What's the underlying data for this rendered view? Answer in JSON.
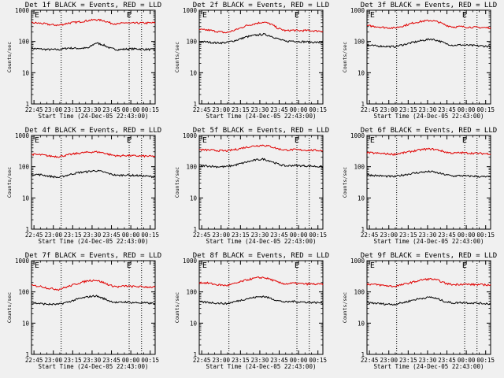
{
  "colors": {
    "background": "#f0f0f0",
    "events": "#000000",
    "lld": "#e00000",
    "axes": "#000000"
  },
  "chart_data": [
    {
      "type": "line",
      "title": "Det 1f BLACK = Events, RED = LLD",
      "xlabel": "Start Time (24-Dec-05 22:43:00)",
      "ylabel": "Counts/sec",
      "yscale": "log",
      "ylim": [
        1,
        1000
      ],
      "yticks": [
        "1",
        "10",
        "100",
        "1000"
      ],
      "xlim": [
        0,
        100
      ],
      "xticks": [
        "22:45",
        "23:00",
        "23:15",
        "23:30",
        "23:45",
        "00:00",
        "00:15"
      ],
      "vlines_dotted": [
        24,
        79,
        89
      ],
      "markers": [
        "E",
        "E"
      ],
      "series": [
        {
          "name": "BLACK = Events",
          "color": "#000000",
          "x": [
            0,
            8,
            14,
            22,
            30,
            38,
            46,
            52,
            58,
            64,
            70,
            76,
            80,
            86,
            92,
            98
          ],
          "y": [
            60,
            57,
            55,
            55,
            62,
            60,
            62,
            90,
            78,
            60,
            55,
            57,
            58,
            58,
            56,
            55
          ]
        },
        {
          "name": "RED = LLD",
          "color": "#e00000",
          "x": [
            0,
            8,
            14,
            22,
            30,
            38,
            46,
            52,
            58,
            64,
            70,
            76,
            80,
            86,
            92,
            98
          ],
          "y": [
            400,
            380,
            350,
            330,
            390,
            420,
            470,
            500,
            470,
            390,
            360,
            400,
            380,
            390,
            390,
            395
          ]
        }
      ]
    },
    {
      "type": "line",
      "title": "Det 2f BLACK = Events, RED = LLD",
      "xlabel": "Start Time (24-Dec-05 22:43:00)",
      "ylabel": "Counts/sec",
      "yscale": "log",
      "ylim": [
        1,
        1000
      ],
      "yticks": [
        "1",
        "10",
        "100",
        "1000"
      ],
      "xlim": [
        0,
        100
      ],
      "xticks": [
        "22:45",
        "23:00",
        "23:15",
        "23:30",
        "23:45",
        "00:00",
        "00:15"
      ],
      "vlines_dotted": [
        24,
        79,
        89
      ],
      "markers": [
        "E",
        "E"
      ],
      "series": [
        {
          "name": "BLACK = Events",
          "color": "#000000",
          "x": [
            0,
            8,
            14,
            22,
            30,
            38,
            46,
            52,
            58,
            64,
            70,
            76,
            80,
            86,
            92,
            98
          ],
          "y": [
            100,
            95,
            90,
            92,
            110,
            140,
            160,
            170,
            150,
            120,
            100,
            105,
            100,
            98,
            95,
            92
          ]
        },
        {
          "name": "RED = LLD",
          "color": "#e00000",
          "x": [
            0,
            8,
            14,
            22,
            30,
            38,
            46,
            52,
            58,
            64,
            70,
            76,
            80,
            86,
            92,
            98
          ],
          "y": [
            240,
            230,
            210,
            190,
            240,
            320,
            380,
            420,
            360,
            260,
            220,
            230,
            220,
            225,
            220,
            215
          ]
        }
      ]
    },
    {
      "type": "line",
      "title": "Det 3f BLACK = Events, RED = LLD",
      "xlabel": "Start Time (24-Dec-05 22:43:00)",
      "ylabel": "Counts/sec",
      "yscale": "log",
      "ylim": [
        1,
        1000
      ],
      "yticks": [
        "1",
        "10",
        "100",
        "1000"
      ],
      "xlim": [
        0,
        100
      ],
      "xticks": [
        "22:45",
        "23:00",
        "23:15",
        "23:30",
        "23:45",
        "00:00",
        "00:15"
      ],
      "vlines_dotted": [
        24,
        79,
        89
      ],
      "markers": [
        "E",
        "E"
      ],
      "series": [
        {
          "name": "BLACK = Events",
          "color": "#000000",
          "x": [
            0,
            8,
            14,
            22,
            30,
            38,
            46,
            52,
            58,
            64,
            70,
            76,
            80,
            86,
            92,
            98
          ],
          "y": [
            75,
            72,
            70,
            68,
            80,
            95,
            110,
            120,
            105,
            85,
            75,
            78,
            76,
            74,
            72,
            70
          ]
        },
        {
          "name": "RED = LLD",
          "color": "#e00000",
          "x": [
            0,
            8,
            14,
            22,
            30,
            38,
            46,
            52,
            58,
            64,
            70,
            76,
            80,
            86,
            92,
            98
          ],
          "y": [
            320,
            300,
            280,
            270,
            320,
            400,
            450,
            470,
            420,
            330,
            290,
            300,
            290,
            285,
            280,
            275
          ]
        }
      ]
    },
    {
      "type": "line",
      "title": "Det 4f BLACK = Events, RED = LLD",
      "xlabel": "Start Time (24-Dec-05 22:43:00)",
      "ylabel": "Counts/sec",
      "yscale": "log",
      "ylim": [
        1,
        1000
      ],
      "yticks": [
        "1",
        "10",
        "100",
        "1000"
      ],
      "xlim": [
        0,
        100
      ],
      "xticks": [
        "22:45",
        "23:00",
        "23:15",
        "23:30",
        "23:45",
        "00:00",
        "00:15"
      ],
      "vlines_dotted": [
        24,
        79,
        89
      ],
      "markers": [
        "E",
        "E"
      ],
      "series": [
        {
          "name": "BLACK = Events",
          "color": "#000000",
          "x": [
            0,
            8,
            14,
            22,
            30,
            38,
            46,
            52,
            58,
            64,
            70,
            76,
            80,
            86,
            92,
            98
          ],
          "y": [
            58,
            55,
            50,
            45,
            55,
            65,
            70,
            75,
            68,
            58,
            52,
            55,
            53,
            52,
            50,
            48
          ]
        },
        {
          "name": "RED = LLD",
          "color": "#e00000",
          "x": [
            0,
            8,
            14,
            22,
            30,
            38,
            46,
            52,
            58,
            64,
            70,
            76,
            80,
            86,
            92,
            98
          ],
          "y": [
            250,
            240,
            220,
            210,
            240,
            270,
            290,
            300,
            280,
            240,
            220,
            230,
            225,
            220,
            218,
            215
          ]
        }
      ]
    },
    {
      "type": "line",
      "title": "Det 5f BLACK = Events, RED = LLD",
      "xlabel": "Start Time (24-Dec-05 22:43:00)",
      "ylabel": "Counts/sec",
      "yscale": "log",
      "ylim": [
        1,
        1000
      ],
      "yticks": [
        "1",
        "10",
        "100",
        "1000"
      ],
      "xlim": [
        0,
        100
      ],
      "xticks": [
        "22:45",
        "23:00",
        "23:15",
        "23:30",
        "23:45",
        "00:00",
        "00:15"
      ],
      "vlines_dotted": [
        24,
        79,
        89
      ],
      "markers": [
        "E",
        "E"
      ],
      "series": [
        {
          "name": "BLACK = Events",
          "color": "#000000",
          "x": [
            0,
            8,
            14,
            22,
            30,
            38,
            46,
            52,
            58,
            64,
            70,
            76,
            80,
            86,
            92,
            98
          ],
          "y": [
            110,
            105,
            100,
            100,
            115,
            140,
            165,
            175,
            150,
            120,
            105,
            110,
            108,
            106,
            104,
            100
          ]
        },
        {
          "name": "RED = LLD",
          "color": "#e00000",
          "x": [
            0,
            8,
            14,
            22,
            30,
            38,
            46,
            52,
            58,
            64,
            70,
            76,
            80,
            86,
            92,
            98
          ],
          "y": [
            350,
            340,
            330,
            320,
            360,
            420,
            470,
            490,
            440,
            370,
            340,
            350,
            345,
            340,
            335,
            330
          ]
        }
      ]
    },
    {
      "type": "line",
      "title": "Det 6f BLACK = Events, RED = LLD",
      "xlabel": "Start Time (24-Dec-05 22:43:00)",
      "ylabel": "Counts/sec",
      "yscale": "log",
      "ylim": [
        1,
        1000
      ],
      "yticks": [
        "1",
        "10",
        "100",
        "1000"
      ],
      "xlim": [
        0,
        100
      ],
      "xticks": [
        "22:45",
        "23:00",
        "23:15",
        "23:30",
        "23:45",
        "00:00",
        "00:15"
      ],
      "vlines_dotted": [
        24,
        79,
        89
      ],
      "markers": [
        "E",
        "E"
      ],
      "series": [
        {
          "name": "BLACK = Events",
          "color": "#000000",
          "x": [
            0,
            8,
            14,
            22,
            30,
            38,
            46,
            52,
            58,
            64,
            70,
            76,
            80,
            86,
            92,
            98
          ],
          "y": [
            55,
            52,
            50,
            48,
            55,
            62,
            68,
            70,
            62,
            55,
            50,
            52,
            50,
            50,
            48,
            47
          ]
        },
        {
          "name": "RED = LLD",
          "color": "#e00000",
          "x": [
            0,
            8,
            14,
            22,
            30,
            38,
            46,
            52,
            58,
            64,
            70,
            76,
            80,
            86,
            92,
            98
          ],
          "y": [
            280,
            270,
            260,
            250,
            280,
            320,
            360,
            370,
            340,
            290,
            270,
            280,
            275,
            270,
            265,
            260
          ]
        }
      ]
    },
    {
      "type": "line",
      "title": "Det 7f BLACK = Events, RED = LLD",
      "xlabel": "Start Time (24-Dec-05 22:43:00)",
      "ylabel": "Counts/sec",
      "yscale": "log",
      "ylim": [
        1,
        1000
      ],
      "yticks": [
        "1",
        "10",
        "100",
        "1000"
      ],
      "xlim": [
        0,
        100
      ],
      "xticks": [
        "22:45",
        "23:00",
        "23:15",
        "23:30",
        "23:45",
        "00:00",
        "00:15"
      ],
      "vlines_dotted": [
        24,
        79,
        89
      ],
      "markers": [
        "E",
        "E"
      ],
      "series": [
        {
          "name": "BLACK = Events",
          "color": "#000000",
          "x": [
            0,
            8,
            14,
            22,
            30,
            38,
            46,
            52,
            58,
            64,
            70,
            76,
            80,
            86,
            92,
            98
          ],
          "y": [
            45,
            42,
            40,
            40,
            48,
            60,
            70,
            75,
            62,
            50,
            45,
            48,
            46,
            45,
            44,
            43
          ]
        },
        {
          "name": "RED = LLD",
          "color": "#e00000",
          "x": [
            0,
            8,
            14,
            22,
            30,
            38,
            46,
            52,
            58,
            64,
            70,
            76,
            80,
            86,
            92,
            98
          ],
          "y": [
            160,
            150,
            130,
            120,
            150,
            190,
            230,
            240,
            200,
            160,
            145,
            155,
            150,
            148,
            145,
            142
          ]
        }
      ]
    },
    {
      "type": "line",
      "title": "Det 8f BLACK = Events, RED = LLD",
      "xlabel": "Start Time (24-Dec-05 22:43:00)",
      "ylabel": "Counts/sec",
      "yscale": "log",
      "ylim": [
        1,
        1000
      ],
      "yticks": [
        "1",
        "10",
        "100",
        "1000"
      ],
      "xlim": [
        0,
        100
      ],
      "xticks": [
        "22:45",
        "23:00",
        "23:15",
        "23:30",
        "23:45",
        "00:00",
        "00:15"
      ],
      "vlines_dotted": [
        24,
        79,
        89
      ],
      "markers": [
        "E",
        "E"
      ],
      "series": [
        {
          "name": "BLACK = Events",
          "color": "#000000",
          "x": [
            0,
            8,
            14,
            22,
            30,
            38,
            46,
            52,
            58,
            64,
            70,
            76,
            80,
            86,
            92,
            98
          ],
          "y": [
            48,
            46,
            44,
            42,
            50,
            60,
            68,
            72,
            62,
            52,
            47,
            50,
            48,
            47,
            46,
            45
          ]
        },
        {
          "name": "RED = LLD",
          "color": "#e00000",
          "x": [
            0,
            8,
            14,
            22,
            30,
            38,
            46,
            52,
            58,
            64,
            70,
            76,
            80,
            86,
            92,
            98
          ],
          "y": [
            200,
            190,
            170,
            160,
            190,
            240,
            280,
            290,
            250,
            200,
            180,
            190,
            185,
            180,
            178,
            175
          ]
        }
      ]
    },
    {
      "type": "line",
      "title": "Det 9f BLACK = Events, RED = LLD",
      "xlabel": "Start Time (24-Dec-05 22:43:00)",
      "ylabel": "Counts/sec",
      "yscale": "log",
      "ylim": [
        1,
        1000
      ],
      "yticks": [
        "1",
        "10",
        "100",
        "1000"
      ],
      "xlim": [
        0,
        100
      ],
      "xticks": [
        "22:45",
        "23:00",
        "23:15",
        "23:30",
        "23:45",
        "00:00",
        "00:15"
      ],
      "vlines_dotted": [
        24,
        79,
        89
      ],
      "markers": [
        "E",
        "E"
      ],
      "series": [
        {
          "name": "BLACK = Events",
          "color": "#000000",
          "x": [
            0,
            8,
            14,
            22,
            30,
            38,
            46,
            52,
            58,
            64,
            70,
            76,
            80,
            86,
            92,
            98
          ],
          "y": [
            45,
            43,
            41,
            40,
            46,
            56,
            64,
            68,
            58,
            48,
            44,
            46,
            45,
            44,
            43,
            42
          ]
        },
        {
          "name": "RED = LLD",
          "color": "#e00000",
          "x": [
            0,
            8,
            14,
            22,
            30,
            38,
            46,
            52,
            58,
            64,
            70,
            76,
            80,
            86,
            92,
            98
          ],
          "y": [
            180,
            170,
            160,
            150,
            175,
            210,
            250,
            260,
            230,
            185,
            170,
            178,
            175,
            172,
            170,
            168
          ]
        }
      ]
    }
  ]
}
